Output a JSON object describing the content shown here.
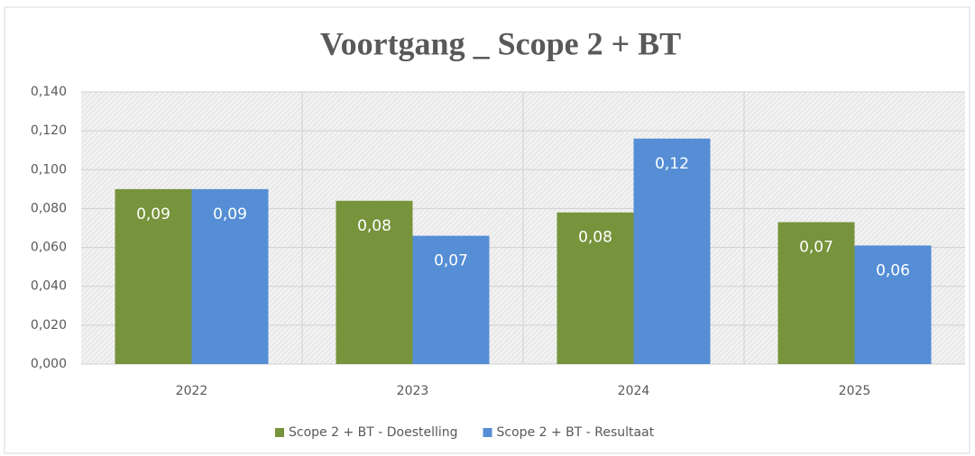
{
  "chart_data": {
    "type": "bar",
    "title": "Voortgang _ Scope 2 + BT",
    "categories": [
      "2022",
      "2023",
      "2024",
      "2025"
    ],
    "series": [
      {
        "name": "Scope 2 + BT - Doestelling",
        "color": "#77933c",
        "values": [
          0.09,
          0.084,
          0.078,
          0.073
        ],
        "value_labels": [
          "0,09",
          "0,08",
          "0,08",
          "0,07"
        ]
      },
      {
        "name": "Scope 2 + BT - Resultaat",
        "color": "#558ed5",
        "values": [
          0.09,
          0.066,
          0.116,
          0.061
        ],
        "value_labels": [
          "0,09",
          "0,07",
          "0,12",
          "0,06"
        ]
      }
    ],
    "ylim": [
      0,
      0.14
    ],
    "yticks": [
      {
        "value": 0,
        "label": "0,000"
      },
      {
        "value": 0.02,
        "label": "0,020"
      },
      {
        "value": 0.04,
        "label": "0,040"
      },
      {
        "value": 0.06,
        "label": "0,060"
      },
      {
        "value": 0.08,
        "label": "0,080"
      },
      {
        "value": 0.1,
        "label": "0,100"
      },
      {
        "value": 0.12,
        "label": "0,120"
      },
      {
        "value": 0.14,
        "label": "0,140"
      }
    ],
    "grid": true,
    "legend": "bottom"
  }
}
